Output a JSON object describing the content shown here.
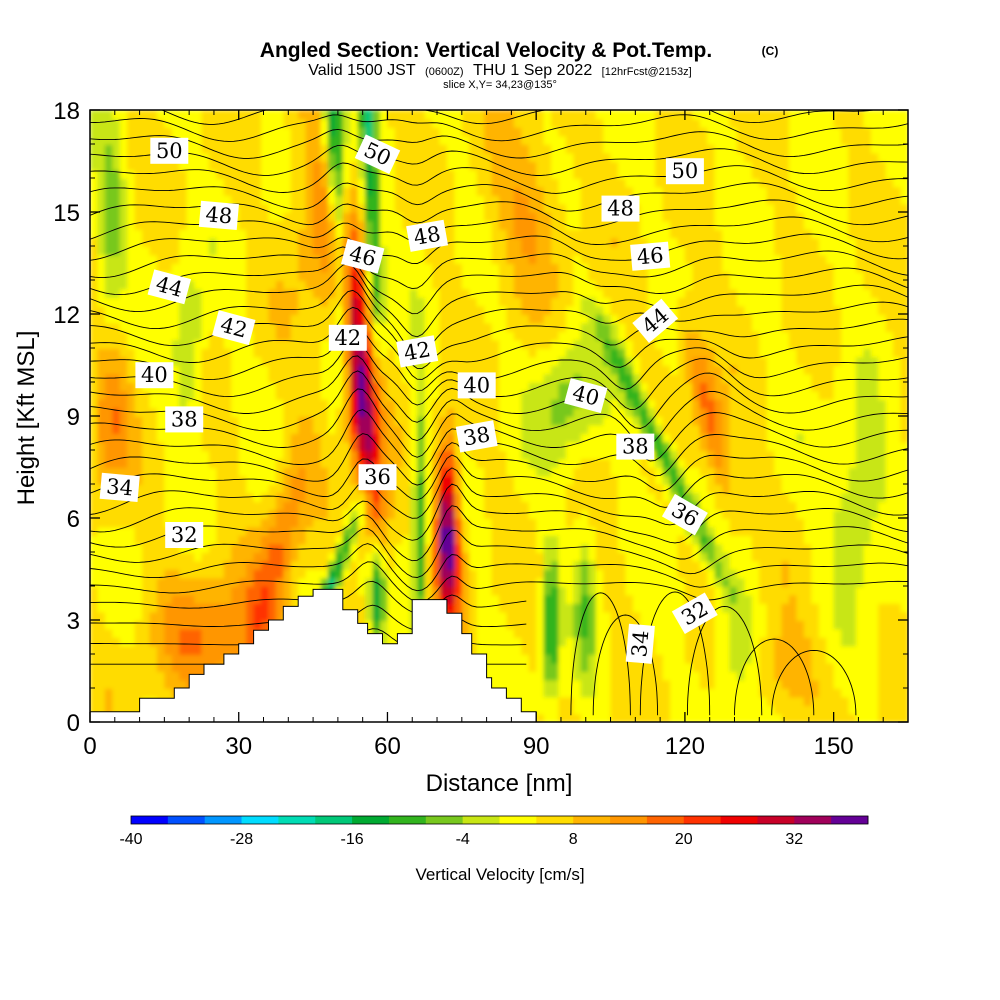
{
  "chart_data": {
    "type": "heatmap",
    "title": "Angled Section: Vertical Velocity & Pot.Temp.",
    "title_units": "(C)",
    "subtitle_main": "Valid 1500 JST",
    "subtitle_utc": "(0600Z)",
    "subtitle_date": "THU 1 Sep 2022",
    "subtitle_fcst": "[12hrFcst@2153z]",
    "slice_info": "slice X,Y= 34,23@135°",
    "xlabel": "Distance [nm]",
    "ylabel": "Height [Kft MSL]",
    "xlim": [
      0,
      165
    ],
    "ylim": [
      0,
      18
    ],
    "x_ticks": [
      "0",
      "30",
      "60",
      "90",
      "120",
      "150"
    ],
    "y_ticks": [
      "0",
      "3",
      "6",
      "9",
      "12",
      "15",
      "18"
    ],
    "colorbar": {
      "label": "Vertical Velocity [cm/s]",
      "min": -40,
      "max": 40,
      "step": 4,
      "tick_labels": [
        "-40",
        "-28",
        "-16",
        "-4",
        "8",
        "20",
        "32"
      ],
      "colors": [
        "#0000ff",
        "#0050ff",
        "#0096ff",
        "#00dcff",
        "#00dcb4",
        "#00c878",
        "#00aa32",
        "#32b41e",
        "#78c81e",
        "#c8e614",
        "#ffff00",
        "#ffdc00",
        "#ffb400",
        "#ff9600",
        "#ff6400",
        "#ff3200",
        "#f00000",
        "#c80028",
        "#a0005a",
        "#640096"
      ]
    },
    "theta_labels": [
      {
        "text": "50",
        "x": 16,
        "y": 16.8,
        "rot": 0
      },
      {
        "text": "50",
        "x": 58,
        "y": 16.7,
        "rot": 25
      },
      {
        "text": "50",
        "x": 120,
        "y": 16.2,
        "rot": 0
      },
      {
        "text": "48",
        "x": 26,
        "y": 14.9,
        "rot": 5
      },
      {
        "text": "48",
        "x": 68,
        "y": 14.3,
        "rot": -10
      },
      {
        "text": "48",
        "x": 107,
        "y": 15.1,
        "rot": 0
      },
      {
        "text": "46",
        "x": 55,
        "y": 13.7,
        "rot": 15
      },
      {
        "text": "46",
        "x": 113,
        "y": 13.7,
        "rot": -5
      },
      {
        "text": "44",
        "x": 16,
        "y": 12.8,
        "rot": 15
      },
      {
        "text": "44",
        "x": 114,
        "y": 11.8,
        "rot": -40
      },
      {
        "text": "42",
        "x": 29,
        "y": 11.6,
        "rot": 15
      },
      {
        "text": "42",
        "x": 52,
        "y": 11.3,
        "rot": 0
      },
      {
        "text": "42",
        "x": 66,
        "y": 10.9,
        "rot": -10
      },
      {
        "text": "40",
        "x": 13,
        "y": 10.2,
        "rot": 0
      },
      {
        "text": "40",
        "x": 78,
        "y": 9.9,
        "rot": 0
      },
      {
        "text": "40",
        "x": 100,
        "y": 9.6,
        "rot": 15
      },
      {
        "text": "38",
        "x": 19,
        "y": 8.9,
        "rot": 0
      },
      {
        "text": "38",
        "x": 78,
        "y": 8.4,
        "rot": -10
      },
      {
        "text": "38",
        "x": 110,
        "y": 8.1,
        "rot": 0
      },
      {
        "text": "36",
        "x": 58,
        "y": 7.2,
        "rot": 0
      },
      {
        "text": "36",
        "x": 120,
        "y": 6.1,
        "rot": 30
      },
      {
        "text": "34",
        "x": 6,
        "y": 6.9,
        "rot": 5
      },
      {
        "text": "34",
        "x": 111,
        "y": 2.3,
        "rot": -85
      },
      {
        "text": "32",
        "x": 19,
        "y": 5.5,
        "rot": 0
      },
      {
        "text": "32",
        "x": 122,
        "y": 3.2,
        "rot": -30
      }
    ],
    "terrain": [
      [
        0,
        0.3
      ],
      [
        10,
        0.3
      ],
      [
        10,
        0.7
      ],
      [
        17,
        0.7
      ],
      [
        17,
        1.0
      ],
      [
        20,
        1.0
      ],
      [
        20,
        1.4
      ],
      [
        23,
        1.4
      ],
      [
        23,
        1.7
      ],
      [
        27,
        1.7
      ],
      [
        27,
        2.0
      ],
      [
        30,
        2.0
      ],
      [
        30,
        2.3
      ],
      [
        33,
        2.3
      ],
      [
        33,
        2.7
      ],
      [
        36,
        2.7
      ],
      [
        36,
        3.0
      ],
      [
        39,
        3.0
      ],
      [
        39,
        3.4
      ],
      [
        42,
        3.4
      ],
      [
        42,
        3.7
      ],
      [
        45,
        3.7
      ],
      [
        45,
        3.9
      ],
      [
        51,
        3.9
      ],
      [
        51,
        3.3
      ],
      [
        54,
        3.3
      ],
      [
        54,
        2.9
      ],
      [
        56,
        2.9
      ],
      [
        56,
        2.6
      ],
      [
        59,
        2.6
      ],
      [
        59,
        2.3
      ],
      [
        62,
        2.3
      ],
      [
        62,
        2.6
      ],
      [
        65,
        2.6
      ],
      [
        65,
        3.6
      ],
      [
        72,
        3.6
      ],
      [
        72,
        3.2
      ],
      [
        75,
        3.2
      ],
      [
        75,
        2.6
      ],
      [
        77,
        2.6
      ],
      [
        77,
        2.0
      ],
      [
        80,
        2.0
      ],
      [
        80,
        1.3
      ],
      [
        81,
        1.3
      ],
      [
        81,
        1.0
      ],
      [
        84,
        1.0
      ],
      [
        84,
        0.7
      ],
      [
        87,
        0.7
      ],
      [
        87,
        0.3
      ],
      [
        90,
        0.3
      ],
      [
        90,
        0
      ]
    ],
    "wfield_note_centers": [
      {
        "x": 55,
        "y": 9.0,
        "w": 28
      },
      {
        "x": 72,
        "y": 5.5,
        "w": 36
      },
      {
        "x": 50,
        "y": 16.0,
        "w": -20
      },
      {
        "x": 113,
        "y": 9.5,
        "w": -14
      },
      {
        "x": 93,
        "y": 3.0,
        "w": -16
      },
      {
        "x": 125,
        "y": 9.0,
        "w": 16
      }
    ]
  }
}
